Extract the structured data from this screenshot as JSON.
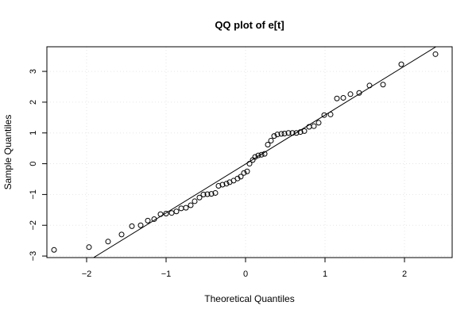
{
  "chart_data": {
    "type": "scatter",
    "title": "QQ plot of e[t]",
    "xlabel": "Theoretical Quantiles",
    "ylabel": "Sample Quantiles",
    "xlim": [
      -2.5,
      2.6
    ],
    "ylim": [
      -3.05,
      3.8
    ],
    "x_ticks": [
      -2,
      -1,
      0,
      1,
      2
    ],
    "x_tick_labels": [
      "−2",
      "−1",
      "0",
      "1",
      "2"
    ],
    "y_ticks": [
      -3,
      -2,
      -1,
      0,
      1,
      2,
      3
    ],
    "y_tick_labels": [
      "−3",
      "−2",
      "−1",
      "0",
      "1",
      "2",
      "3"
    ],
    "grid": true,
    "reference_line": {
      "slope": 1.59,
      "intercept": -0.01
    },
    "points": [
      [
        -2.41,
        -2.8
      ],
      [
        -1.97,
        -2.71
      ],
      [
        -1.73,
        -2.53
      ],
      [
        -1.56,
        -2.3
      ],
      [
        -1.43,
        -2.03
      ],
      [
        -1.32,
        -2.0
      ],
      [
        -1.23,
        -1.85
      ],
      [
        -1.15,
        -1.8
      ],
      [
        -1.07,
        -1.64
      ],
      [
        -1.0,
        -1.62
      ],
      [
        -0.93,
        -1.6
      ],
      [
        -0.87,
        -1.55
      ],
      [
        -0.81,
        -1.45
      ],
      [
        -0.75,
        -1.43
      ],
      [
        -0.69,
        -1.35
      ],
      [
        -0.64,
        -1.22
      ],
      [
        -0.58,
        -1.1
      ],
      [
        -0.53,
        -1.0
      ],
      [
        -0.48,
        -0.99
      ],
      [
        -0.43,
        -0.98
      ],
      [
        -0.38,
        -0.95
      ],
      [
        -0.34,
        -0.72
      ],
      [
        -0.29,
        -0.68
      ],
      [
        -0.24,
        -0.65
      ],
      [
        -0.2,
        -0.6
      ],
      [
        -0.15,
        -0.55
      ],
      [
        -0.1,
        -0.48
      ],
      [
        -0.06,
        -0.42
      ],
      [
        -0.02,
        -0.3
      ],
      [
        0.02,
        -0.25
      ],
      [
        0.05,
        0.0
      ],
      [
        0.09,
        0.12
      ],
      [
        0.12,
        0.22
      ],
      [
        0.16,
        0.27
      ],
      [
        0.2,
        0.29
      ],
      [
        0.24,
        0.32
      ],
      [
        0.28,
        0.62
      ],
      [
        0.32,
        0.75
      ],
      [
        0.36,
        0.9
      ],
      [
        0.4,
        0.95
      ],
      [
        0.45,
        0.97
      ],
      [
        0.49,
        0.98
      ],
      [
        0.54,
        1.0
      ],
      [
        0.59,
        1.0
      ],
      [
        0.64,
        1.0
      ],
      [
        0.69,
        1.03
      ],
      [
        0.74,
        1.06
      ],
      [
        0.8,
        1.2
      ],
      [
        0.86,
        1.22
      ],
      [
        0.92,
        1.33
      ],
      [
        0.99,
        1.58
      ],
      [
        1.07,
        1.6
      ],
      [
        1.15,
        2.12
      ],
      [
        1.23,
        2.14
      ],
      [
        1.32,
        2.26
      ],
      [
        1.43,
        2.3
      ],
      [
        1.56,
        2.54
      ],
      [
        1.73,
        2.57
      ],
      [
        1.96,
        3.23
      ],
      [
        2.39,
        3.56
      ]
    ]
  }
}
